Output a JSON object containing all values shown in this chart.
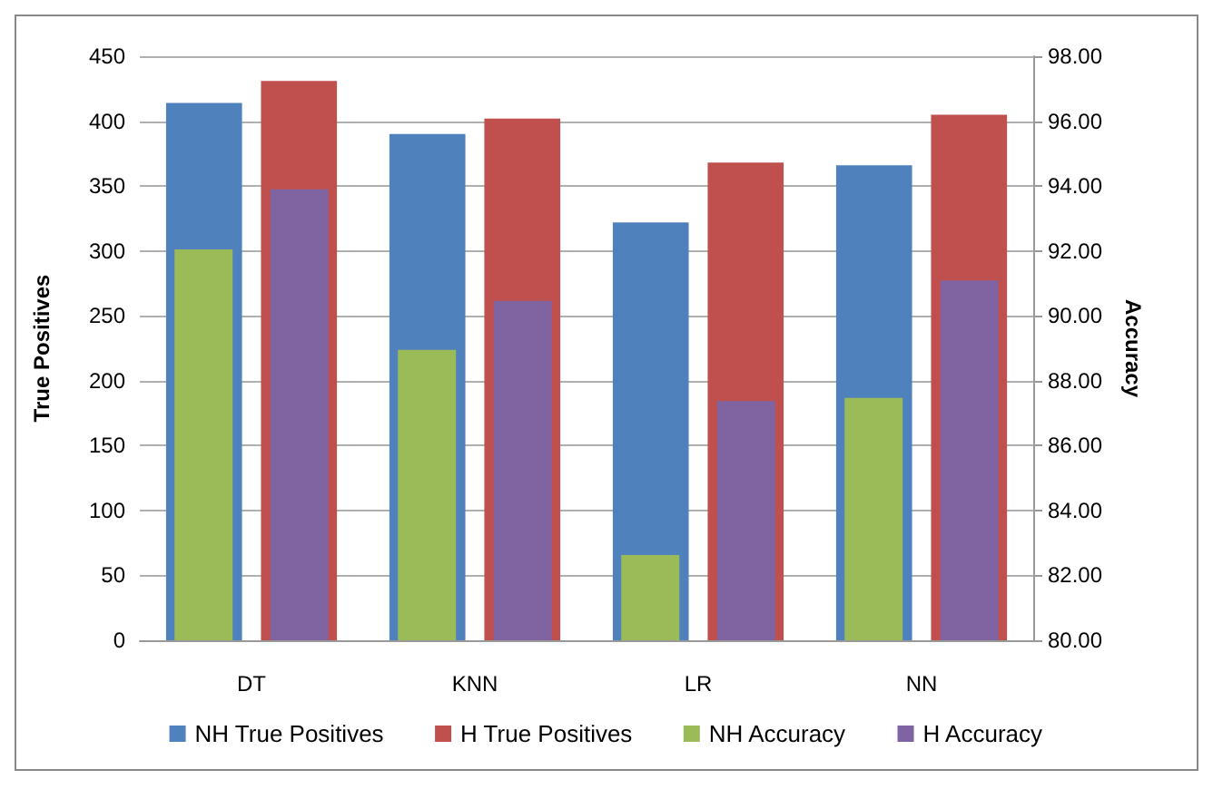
{
  "chart_data": {
    "type": "bar",
    "categories": [
      "DT",
      "KNN",
      "LR",
      "NN"
    ],
    "ylabel": "True Positives",
    "y2label": "Accuracy",
    "series": [
      {
        "name": "NH True Positives",
        "color": "#4f81bd",
        "values": [
          414,
          390,
          322,
          366
        ]
      },
      {
        "name": "H True Positives",
        "color": "#c0504d",
        "values": [
          431,
          402,
          368,
          405
        ]
      },
      {
        "name": "NH Accuracy",
        "color": "#9bbb59",
        "axis": "y2",
        "values": [
          92.05,
          88.95,
          82.63,
          87.47
        ]
      },
      {
        "name": "H Accuracy",
        "color": "#8064a2",
        "axis": "y2",
        "values": [
          93.9,
          90.46,
          87.37,
          91.09
        ]
      }
    ],
    "ylim": [
      0,
      450
    ],
    "yticks": [
      0,
      50,
      100,
      150,
      200,
      250,
      300,
      350,
      400,
      450
    ],
    "y2lim": [
      80,
      98
    ],
    "y2ticks": [
      {
        "value": 80,
        "label": "80.00"
      },
      {
        "value": 82,
        "label": "82.00"
      },
      {
        "value": 84,
        "label": "84.00"
      },
      {
        "value": 86,
        "label": "86.00"
      },
      {
        "value": 88,
        "label": "88.00"
      },
      {
        "value": 90,
        "label": "90.00"
      },
      {
        "value": 92,
        "label": "92.00"
      },
      {
        "value": 94,
        "label": "94.00"
      },
      {
        "value": 96,
        "label": "96.00"
      },
      {
        "value": 98,
        "label": "98.00"
      }
    ],
    "grid": "y",
    "legend": "bottom"
  }
}
